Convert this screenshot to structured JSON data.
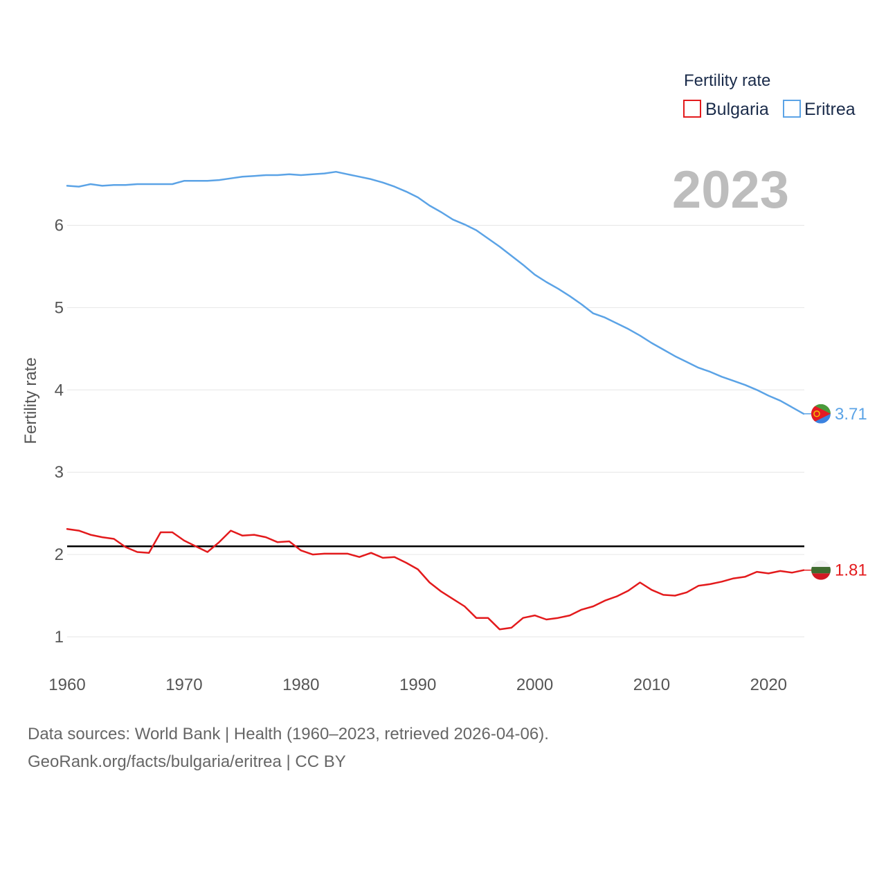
{
  "chart_data": {
    "type": "line",
    "legend_title": "Fertility rate",
    "year_label": "2023",
    "ylabel": "Fertility rate",
    "xlim": [
      1960,
      2023
    ],
    "ylim": [
      0.5,
      7
    ],
    "yticks": [
      1,
      2,
      3,
      4,
      5,
      6
    ],
    "xticks": [
      1960,
      1970,
      1980,
      1990,
      2000,
      2010,
      2020
    ],
    "reference_line": 2.1,
    "grid": true,
    "legend_position": "top-right",
    "series": [
      {
        "name": "Bulgaria",
        "color": "#e31a1c",
        "last_value_label": "1.81",
        "flag": "bulgaria-flag-icon",
        "x": [
          1960,
          1961,
          1962,
          1963,
          1964,
          1965,
          1966,
          1967,
          1968,
          1969,
          1970,
          1971,
          1972,
          1973,
          1974,
          1975,
          1976,
          1977,
          1978,
          1979,
          1980,
          1981,
          1982,
          1983,
          1984,
          1985,
          1986,
          1987,
          1988,
          1989,
          1990,
          1991,
          1992,
          1993,
          1994,
          1995,
          1996,
          1997,
          1998,
          1999,
          2000,
          2001,
          2002,
          2003,
          2004,
          2005,
          2006,
          2007,
          2008,
          2009,
          2010,
          2011,
          2012,
          2013,
          2014,
          2015,
          2016,
          2017,
          2018,
          2019,
          2020,
          2021,
          2022,
          2023
        ],
        "values": [
          2.31,
          2.29,
          2.24,
          2.21,
          2.19,
          2.09,
          2.03,
          2.02,
          2.27,
          2.27,
          2.17,
          2.1,
          2.03,
          2.15,
          2.29,
          2.23,
          2.24,
          2.21,
          2.15,
          2.16,
          2.05,
          2.0,
          2.01,
          2.01,
          2.01,
          1.97,
          2.02,
          1.96,
          1.97,
          1.9,
          1.82,
          1.66,
          1.55,
          1.46,
          1.37,
          1.23,
          1.23,
          1.09,
          1.11,
          1.23,
          1.26,
          1.21,
          1.23,
          1.26,
          1.33,
          1.37,
          1.44,
          1.49,
          1.56,
          1.66,
          1.57,
          1.51,
          1.5,
          1.54,
          1.62,
          1.64,
          1.67,
          1.71,
          1.73,
          1.79,
          1.77,
          1.8,
          1.78,
          1.81
        ]
      },
      {
        "name": "Eritrea",
        "color": "#5ba3e6",
        "last_value_label": "3.71",
        "flag": "eritrea-flag-icon",
        "x": [
          1960,
          1961,
          1962,
          1963,
          1964,
          1965,
          1966,
          1967,
          1968,
          1969,
          1970,
          1971,
          1972,
          1973,
          1974,
          1975,
          1976,
          1977,
          1978,
          1979,
          1980,
          1981,
          1982,
          1983,
          1984,
          1985,
          1986,
          1987,
          1988,
          1989,
          1990,
          1991,
          1992,
          1993,
          1994,
          1995,
          1996,
          1997,
          1998,
          1999,
          2000,
          2001,
          2002,
          2003,
          2004,
          2005,
          2006,
          2007,
          2008,
          2009,
          2010,
          2011,
          2012,
          2013,
          2014,
          2015,
          2016,
          2017,
          2018,
          2019,
          2020,
          2021,
          2022,
          2023
        ],
        "values": [
          6.48,
          6.47,
          6.5,
          6.48,
          6.49,
          6.49,
          6.5,
          6.5,
          6.5,
          6.5,
          6.54,
          6.54,
          6.54,
          6.55,
          6.57,
          6.59,
          6.6,
          6.61,
          6.61,
          6.62,
          6.61,
          6.62,
          6.63,
          6.65,
          6.62,
          6.59,
          6.56,
          6.52,
          6.47,
          6.41,
          6.34,
          6.24,
          6.16,
          6.07,
          6.01,
          5.94,
          5.84,
          5.74,
          5.63,
          5.52,
          5.4,
          5.31,
          5.23,
          5.14,
          5.04,
          4.93,
          4.88,
          4.81,
          4.74,
          4.66,
          4.57,
          4.49,
          4.41,
          4.34,
          4.27,
          4.22,
          4.16,
          4.11,
          4.06,
          4.0,
          3.93,
          3.87,
          3.79,
          3.71
        ]
      }
    ]
  },
  "footer": {
    "line1": "Data sources: World Bank | Health (1960–2023, retrieved 2026-04-06).",
    "line2": "GeoRank.org/facts/bulgaria/eritrea | CC BY"
  }
}
